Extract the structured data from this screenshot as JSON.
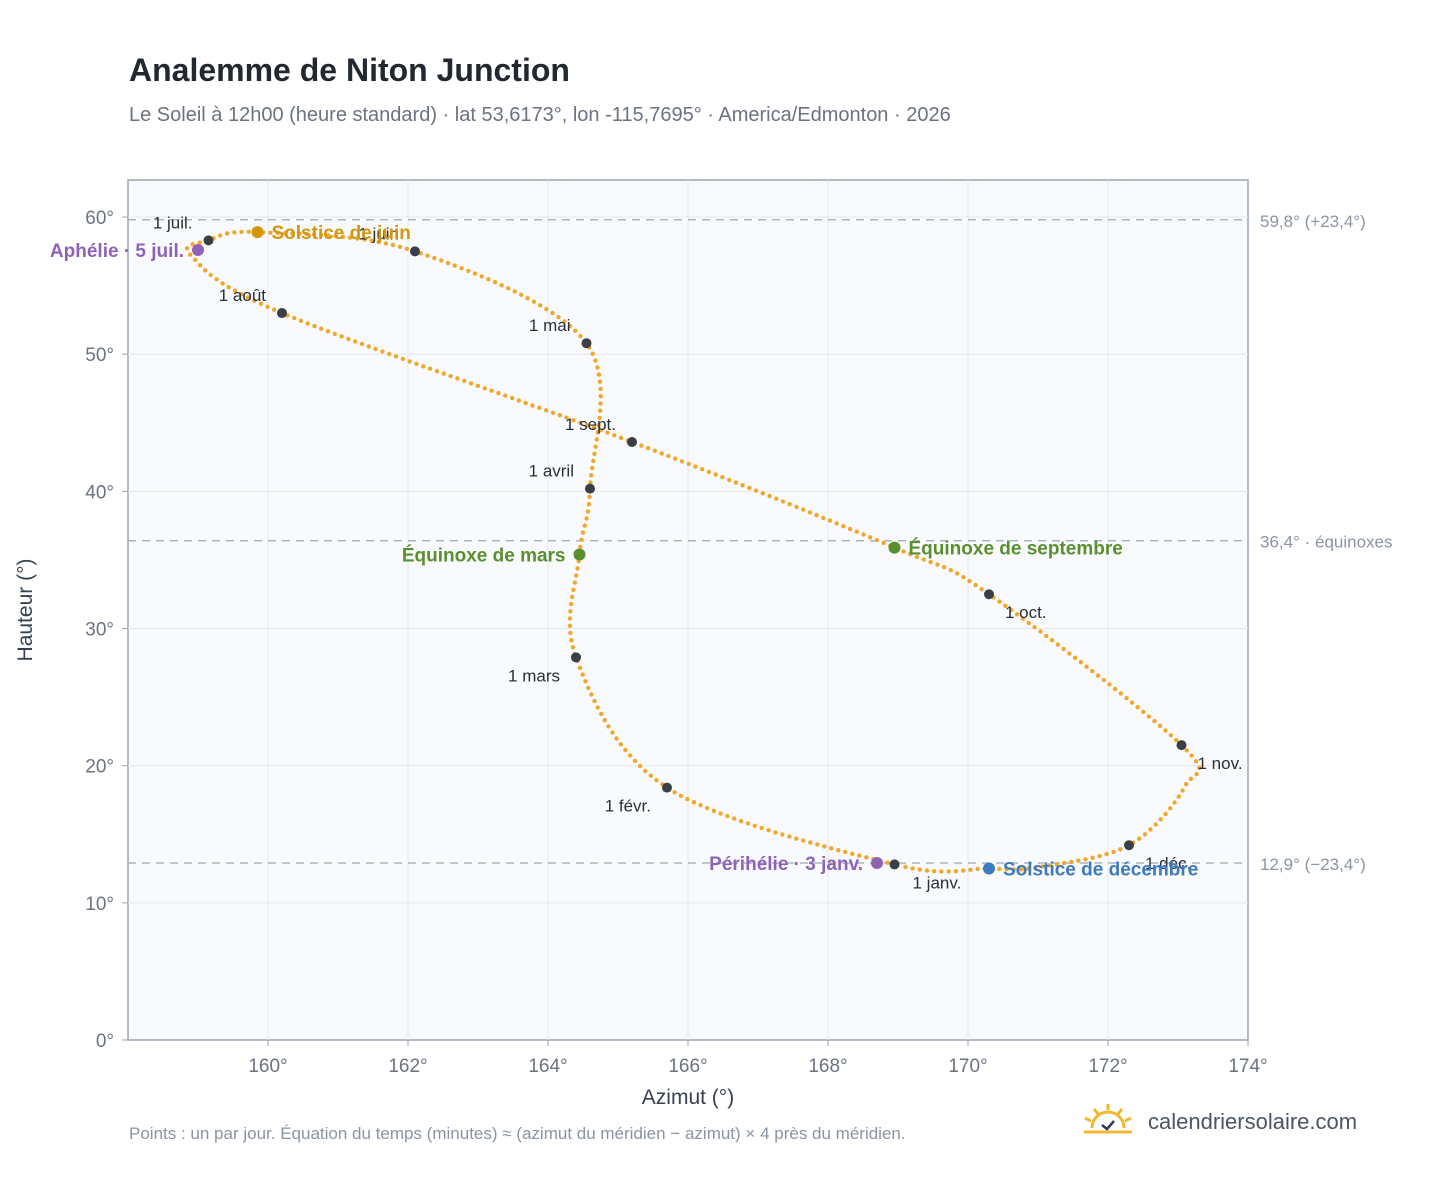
{
  "header": {
    "title": "Analemme de Niton Junction",
    "subtitle": "Le Soleil à 12h00 (heure standard) · lat 53,6173°, lon -115,7695° · America/Edmonton · 2026"
  },
  "footer": {
    "note": "Points : un par jour. Équation du temps (minutes) ≈ (azimut du méridien − azimut) × 4 près du méridien.",
    "brand": "calendriersolaire.com"
  },
  "colors": {
    "curve": "#f2a72a",
    "month_marker": "#3a3f47",
    "solstice_june": "#d4960c",
    "solstice_december": "#3d7abf",
    "equinox": "#5a8f2e",
    "apsis": "#8e63b5",
    "plot_bg": "#f8fafd",
    "grid": "#e3e8ee",
    "ref_line": "#aab4c0"
  },
  "chart_data": {
    "type": "scatter",
    "xlabel": "Azimut (°)",
    "ylabel": "Hauteur (°)",
    "xlim": [
      158,
      174
    ],
    "ylim": [
      0,
      60
    ],
    "x_ticks": [
      "160°",
      "162°",
      "164°",
      "166°",
      "168°",
      "170°",
      "172°",
      "174°"
    ],
    "y_ticks": [
      "0°",
      "10°",
      "20°",
      "30°",
      "40°",
      "50°",
      "60°"
    ],
    "grid": true,
    "reference_lines": [
      {
        "y": 59.8,
        "label": "59,8° (+23,4°)"
      },
      {
        "y": 36.4,
        "label": "36,4° · équinoxes"
      },
      {
        "y": 12.9,
        "label": "12,9° (−23,4°)"
      }
    ],
    "month_markers": [
      {
        "label": "1 janv.",
        "x": 168.95,
        "y": 12.8
      },
      {
        "label": "1 févr.",
        "x": 165.7,
        "y": 18.4
      },
      {
        "label": "1 mars",
        "x": 164.4,
        "y": 27.9
      },
      {
        "label": "1 avril",
        "x": 164.6,
        "y": 40.2
      },
      {
        "label": "1 mai",
        "x": 164.55,
        "y": 50.8
      },
      {
        "label": "1 juin",
        "x": 162.1,
        "y": 57.5
      },
      {
        "label": "1 juil.",
        "x": 159.15,
        "y": 58.3
      },
      {
        "label": "1 août",
        "x": 160.2,
        "y": 53.0
      },
      {
        "label": "1 sept.",
        "x": 165.2,
        "y": 43.6
      },
      {
        "label": "1 oct.",
        "x": 170.3,
        "y": 32.5
      },
      {
        "label": "1 nov.",
        "x": 173.05,
        "y": 21.5
      },
      {
        "label": "1 déc.",
        "x": 172.3,
        "y": 14.2
      }
    ],
    "events": [
      {
        "label": "Solstice de juin",
        "x": 159.85,
        "y": 58.9,
        "color": "#d4960c"
      },
      {
        "label": "Solstice de décembre",
        "x": 170.3,
        "y": 12.5,
        "color": "#3d7abf"
      },
      {
        "label": "Équinoxe de mars",
        "x": 164.45,
        "y": 35.4,
        "color": "#5a8f2e"
      },
      {
        "label": "Équinoxe de septembre",
        "x": 168.95,
        "y": 35.9,
        "color": "#5a8f2e"
      },
      {
        "label": "Aphélie · 5 juil.",
        "x": 159.0,
        "y": 57.6,
        "color": "#8e63b5"
      },
      {
        "label": "Périhélie · 3 janv.",
        "x": 168.7,
        "y": 12.9,
        "color": "#8e63b5"
      }
    ]
  }
}
